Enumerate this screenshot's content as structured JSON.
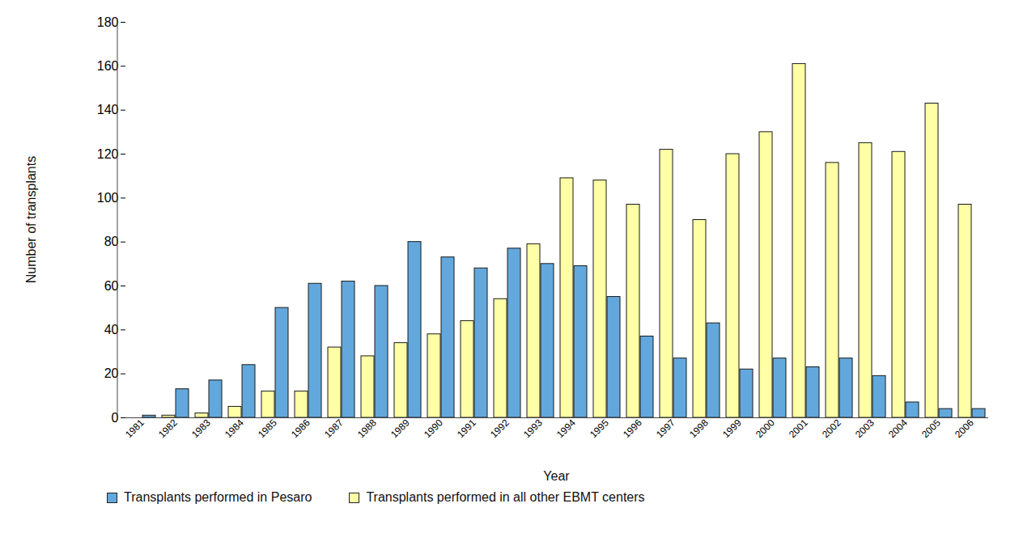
{
  "chart_data": {
    "type": "bar",
    "x_label": "Year",
    "y_label": "Number of transplants",
    "categories": [
      "1981",
      "1982",
      "1983",
      "1984",
      "1985",
      "1986",
      "1987",
      "1988",
      "1989",
      "1990",
      "1991",
      "1992",
      "1993",
      "1994",
      "1995",
      "1996",
      "1997",
      "1998",
      "1999",
      "2000",
      "2001",
      "2002",
      "2003",
      "2004",
      "2005",
      "2006"
    ],
    "series": [
      {
        "name": "Transplants performed in Pesaro",
        "color": "#63a8dc",
        "values": [
          1,
          13,
          17,
          24,
          50,
          61,
          62,
          60,
          80,
          73,
          68,
          77,
          70,
          69,
          55,
          37,
          27,
          43,
          22,
          27,
          23,
          27,
          19,
          7,
          4,
          4
        ]
      },
      {
        "name": "Transplants performed in all other EBMT centers",
        "color": "#ffffa6",
        "values": [
          0,
          1,
          2,
          5,
          12,
          12,
          32,
          28,
          34,
          38,
          44,
          54,
          79,
          109,
          108,
          97,
          122,
          90,
          120,
          130,
          161,
          116,
          125,
          121,
          143,
          97
        ]
      }
    ],
    "ylim": [
      0,
      180
    ],
    "yticks": [
      0,
      20,
      40,
      60,
      80,
      100,
      120,
      140,
      160,
      180
    ],
    "grid": false,
    "legend": "bottom"
  }
}
